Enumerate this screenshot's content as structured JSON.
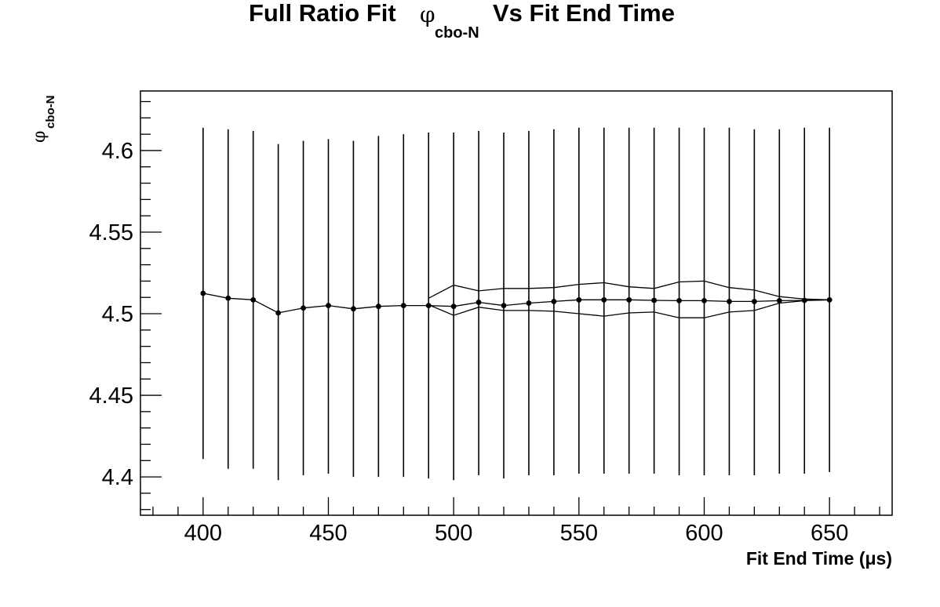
{
  "chart_data": {
    "type": "scatter",
    "title": {
      "prefix": "Full Ratio Fit",
      "symbol": "φ",
      "subscript": "cbo-N",
      "suffix": "Vs Fit End Time"
    },
    "xlabel": "Fit End Time (μs)",
    "ylabel": {
      "symbol": "φ",
      "subscript": "cbo-N"
    },
    "xlim": [
      375,
      675
    ],
    "ylim": [
      4.3765,
      4.6365
    ],
    "x_ticks": [
      400,
      450,
      500,
      550,
      600,
      650
    ],
    "y_ticks": [
      4.4,
      4.45,
      4.5,
      4.55,
      4.6
    ],
    "x_tick_labels": [
      "400",
      "450",
      "500",
      "550",
      "600",
      "650"
    ],
    "y_tick_labels": [
      "4.4",
      "4.45",
      "4.5",
      "4.55",
      "4.6"
    ],
    "grid": false,
    "legend": "none",
    "series": [
      {
        "style": "points with error bars",
        "x": [
          400,
          410,
          420,
          430,
          440,
          450,
          460,
          470,
          480,
          490,
          500,
          510,
          520,
          530,
          540,
          550,
          560,
          570,
          580,
          590,
          600,
          610,
          620,
          630,
          640,
          650
        ],
        "y": [
          4.5125,
          4.5095,
          4.5085,
          4.5005,
          4.5035,
          4.505,
          4.503,
          4.5045,
          4.505,
          4.505,
          4.5045,
          4.507,
          4.505,
          4.5065,
          4.5075,
          4.5085,
          4.5085,
          4.5085,
          4.5082,
          4.508,
          4.508,
          4.5075,
          4.5075,
          4.508,
          4.5082,
          4.5085
        ],
        "yerr_low": [
          4.411,
          4.405,
          4.405,
          4.398,
          4.401,
          4.402,
          4.4,
          4.4,
          4.4,
          4.399,
          4.398,
          4.401,
          4.399,
          4.401,
          4.401,
          4.402,
          4.402,
          4.402,
          4.402,
          4.401,
          4.401,
          4.401,
          4.401,
          4.402,
          4.402,
          4.403
        ],
        "yerr_high": [
          4.614,
          4.613,
          4.612,
          4.604,
          4.606,
          4.607,
          4.606,
          4.609,
          4.61,
          4.611,
          4.611,
          4.612,
          4.611,
          4.612,
          4.613,
          4.614,
          4.614,
          4.614,
          4.614,
          4.614,
          4.614,
          4.614,
          4.613,
          4.613,
          4.614,
          4.614
        ]
      },
      {
        "style": "band upper line",
        "x": [
          490,
          500,
          510,
          520,
          530,
          540,
          550,
          560,
          570,
          580,
          590,
          600,
          610,
          620,
          630,
          640,
          650
        ],
        "y": [
          4.5095,
          4.5175,
          4.514,
          4.5155,
          4.5155,
          4.516,
          4.518,
          4.519,
          4.5165,
          4.5155,
          4.5195,
          4.52,
          4.516,
          4.5145,
          4.5105,
          4.509,
          4.5085
        ]
      },
      {
        "style": "band lower line",
        "x": [
          490,
          500,
          510,
          520,
          530,
          540,
          550,
          560,
          570,
          580,
          590,
          600,
          610,
          620,
          630,
          640,
          650
        ],
        "y": [
          4.5055,
          4.499,
          4.504,
          4.502,
          4.502,
          4.5015,
          4.5,
          4.4985,
          4.5005,
          4.501,
          4.4975,
          4.4975,
          4.501,
          4.502,
          4.5065,
          4.508,
          4.5085
        ]
      }
    ]
  }
}
